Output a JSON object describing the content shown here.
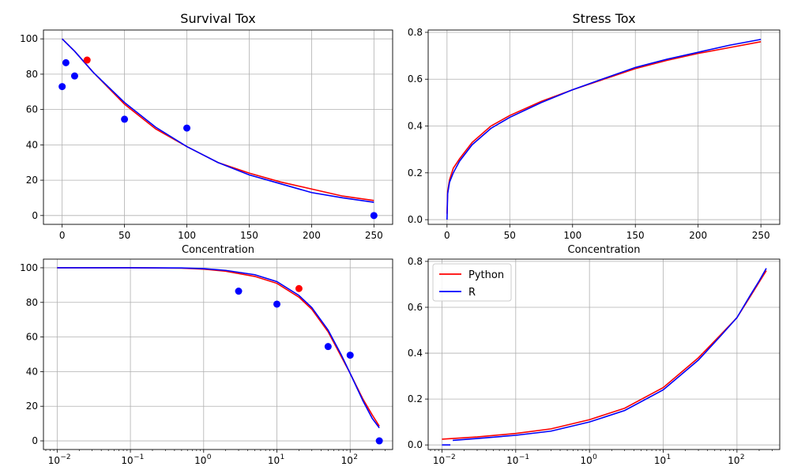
{
  "colors": {
    "python": "#ff0000",
    "r": "#0000ff",
    "grid": "#b0b0b0"
  },
  "chart_data": [
    {
      "id": "survival-linear",
      "type": "line",
      "title": "Survival Tox",
      "xlabel": "Concentration",
      "ylabel": "",
      "xscale": "linear",
      "xlim": [
        -15,
        265
      ],
      "ylim": [
        -5,
        105
      ],
      "xticks": [
        0,
        50,
        100,
        150,
        200,
        250
      ],
      "xtick_labels": [
        "0",
        "50",
        "100",
        "150",
        "200",
        "250"
      ],
      "yticks": [
        0,
        20,
        40,
        60,
        80,
        100
      ],
      "ytick_labels": [
        "0",
        "20",
        "40",
        "60",
        "80",
        "100"
      ],
      "grid": true,
      "series": [
        {
          "name": "Python",
          "color": "#ff0000",
          "x": [
            0,
            10,
            25,
            50,
            75,
            100,
            125,
            150,
            175,
            200,
            225,
            250
          ],
          "y": [
            100,
            93,
            81,
            63,
            49,
            39,
            30,
            24,
            19,
            15,
            11,
            8.5
          ]
        },
        {
          "name": "R",
          "color": "#0000ff",
          "x": [
            0,
            10,
            25,
            50,
            75,
            100,
            125,
            150,
            175,
            200,
            225,
            250
          ],
          "y": [
            100,
            93,
            81,
            64,
            50,
            39,
            30,
            23,
            18,
            13,
            10,
            7.5
          ]
        }
      ],
      "points": [
        {
          "x": 0,
          "y": 73,
          "color": "#0000ff"
        },
        {
          "x": 3,
          "y": 86.5,
          "color": "#0000ff"
        },
        {
          "x": 10,
          "y": 79,
          "color": "#0000ff"
        },
        {
          "x": 20,
          "y": 88,
          "color": "#ff0000"
        },
        {
          "x": 50,
          "y": 54.5,
          "color": "#0000ff"
        },
        {
          "x": 100,
          "y": 49.5,
          "color": "#0000ff"
        },
        {
          "x": 250,
          "y": 0,
          "color": "#0000ff"
        }
      ]
    },
    {
      "id": "stress-linear",
      "type": "line",
      "title": "Stress Tox",
      "xlabel": "Concentration",
      "ylabel": "",
      "xscale": "linear",
      "xlim": [
        -15,
        265
      ],
      "ylim": [
        -0.02,
        0.81
      ],
      "xticks": [
        0,
        50,
        100,
        150,
        200,
        250
      ],
      "xtick_labels": [
        "0",
        "50",
        "100",
        "150",
        "200",
        "250"
      ],
      "yticks": [
        0,
        0.2,
        0.4,
        0.6,
        0.8
      ],
      "ytick_labels": [
        "0.0",
        "0.2",
        "0.4",
        "0.6",
        "0.8"
      ],
      "grid": true,
      "series": [
        {
          "name": "Python",
          "color": "#ff0000",
          "x": [
            0,
            0.5,
            2,
            5,
            10,
            20,
            35,
            50,
            75,
            100,
            125,
            150,
            175,
            200,
            225,
            250
          ],
          "y": [
            0.025,
            0.12,
            0.17,
            0.22,
            0.26,
            0.33,
            0.4,
            0.445,
            0.505,
            0.555,
            0.6,
            0.645,
            0.68,
            0.71,
            0.735,
            0.76
          ]
        },
        {
          "name": "R",
          "color": "#0000ff",
          "x": [
            0,
            0.5,
            2,
            5,
            10,
            20,
            35,
            50,
            75,
            100,
            125,
            150,
            175,
            200,
            225,
            250
          ],
          "y": [
            0,
            0.11,
            0.16,
            0.2,
            0.25,
            0.32,
            0.39,
            0.437,
            0.5,
            0.555,
            0.603,
            0.65,
            0.685,
            0.715,
            0.745,
            0.77
          ]
        }
      ],
      "points": []
    },
    {
      "id": "survival-log",
      "type": "line",
      "title": "",
      "xlabel": "",
      "ylabel": "",
      "xscale": "log",
      "xlim": [
        0.0065,
        380
      ],
      "ylim": [
        -5,
        105
      ],
      "xticks": [
        0.01,
        0.1,
        1,
        10,
        100
      ],
      "xtick_labels": [
        "10",
        "10",
        "10",
        "10",
        "10"
      ],
      "xtick_exponents": [
        "−2",
        "−1",
        "0",
        "1",
        "2"
      ],
      "yticks": [
        0,
        20,
        40,
        60,
        80,
        100
      ],
      "ytick_labels": [
        "0",
        "20",
        "40",
        "60",
        "80",
        "100"
      ],
      "grid": true,
      "series": [
        {
          "name": "Python",
          "color": "#ff0000",
          "x": [
            0.01,
            0.1,
            0.5,
            1,
            2,
            5,
            10,
            20,
            30,
            50,
            75,
            100,
            150,
            200,
            250
          ],
          "y": [
            100,
            100,
            99.8,
            99.2,
            98,
            95,
            91,
            83,
            76,
            63,
            49,
            39,
            24,
            15,
            8.5
          ]
        },
        {
          "name": "R",
          "color": "#0000ff",
          "x": [
            0.01,
            0.1,
            0.5,
            1,
            2,
            5,
            10,
            20,
            30,
            50,
            75,
            100,
            150,
            200,
            250
          ],
          "y": [
            100,
            100,
            99.9,
            99.5,
            98.5,
            96,
            92,
            84,
            77,
            64,
            50,
            39,
            23,
            13,
            7.5
          ]
        }
      ],
      "points": [
        {
          "x": 3,
          "y": 86.5,
          "color": "#0000ff"
        },
        {
          "x": 10,
          "y": 79,
          "color": "#0000ff"
        },
        {
          "x": 20,
          "y": 88,
          "color": "#ff0000"
        },
        {
          "x": 50,
          "y": 54.5,
          "color": "#0000ff"
        },
        {
          "x": 100,
          "y": 49.5,
          "color": "#0000ff"
        },
        {
          "x": 250,
          "y": 0,
          "color": "#0000ff"
        }
      ]
    },
    {
      "id": "stress-log",
      "type": "line",
      "title": "",
      "xlabel": "",
      "ylabel": "",
      "xscale": "log",
      "xlim": [
        0.0065,
        380
      ],
      "ylim": [
        -0.02,
        0.81
      ],
      "xticks": [
        0.01,
        0.1,
        1,
        10,
        100
      ],
      "xtick_labels": [
        "10",
        "10",
        "10",
        "10",
        "10"
      ],
      "xtick_exponents": [
        "−2",
        "−1",
        "0",
        "1",
        "2"
      ],
      "yticks": [
        0,
        0.2,
        0.4,
        0.6,
        0.8
      ],
      "ytick_labels": [
        "0.0",
        "0.2",
        "0.4",
        "0.6",
        "0.8"
      ],
      "grid": true,
      "legend": {
        "placement": "upper-left",
        "entries": [
          {
            "label": "Python",
            "color": "#ff0000"
          },
          {
            "label": "R",
            "color": "#0000ff"
          }
        ]
      },
      "series": [
        {
          "name": "Python",
          "color": "#ff0000",
          "x": [
            0.01,
            0.03,
            0.1,
            0.3,
            1,
            3,
            10,
            30,
            60,
            100,
            150,
            200,
            250
          ],
          "y": [
            0.025,
            0.035,
            0.05,
            0.07,
            0.11,
            0.16,
            0.25,
            0.38,
            0.48,
            0.555,
            0.645,
            0.71,
            0.76
          ]
        },
        {
          "name": "R",
          "color": "#0000ff",
          "x": [
            0.014,
            0.03,
            0.1,
            0.3,
            1,
            3,
            10,
            30,
            60,
            100,
            150,
            200,
            250
          ],
          "y": [
            0.02,
            0.028,
            0.042,
            0.06,
            0.1,
            0.15,
            0.24,
            0.37,
            0.475,
            0.555,
            0.65,
            0.715,
            0.77
          ]
        },
        {
          "name": "R",
          "color": "#0000ff",
          "x": [
            0.01,
            0.013
          ],
          "y": [
            0,
            0
          ]
        }
      ],
      "points": []
    }
  ]
}
